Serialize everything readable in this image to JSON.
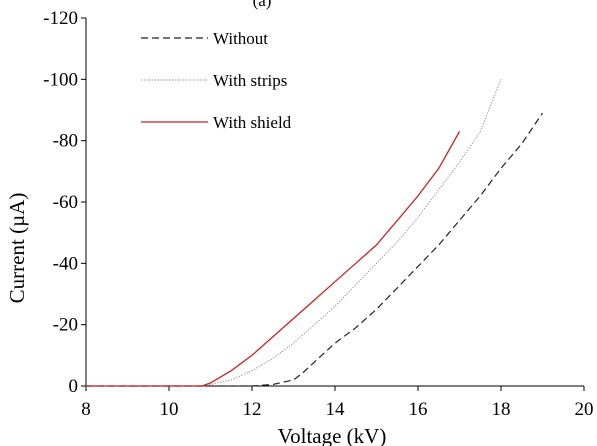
{
  "chart_data": {
    "type": "line",
    "panel_label": "(a)",
    "title": "",
    "xlabel": "Voltage (kV)",
    "ylabel": "Current (µA)",
    "xlim": [
      8,
      20
    ],
    "ylim": [
      0,
      -120
    ],
    "x_ticks": [
      8,
      10,
      12,
      14,
      16,
      18,
      20
    ],
    "x_tick_labels": [
      "8",
      "10",
      "12",
      "14",
      "16",
      "18",
      "20"
    ],
    "y_ticks": [
      0,
      -20,
      -40,
      -60,
      -80,
      -100,
      -120
    ],
    "y_tick_labels": [
      "0",
      "-20",
      "-40",
      "-60",
      "-80",
      "-100",
      "-120"
    ],
    "grid": false,
    "legend": {
      "placement": "top-left"
    },
    "series": [
      {
        "name": "Without",
        "color": "#222222",
        "line_style": "dashed",
        "x": [
          8,
          10,
          11,
          12,
          12.5,
          13,
          13.2,
          13.6,
          14,
          14.5,
          15,
          15.5,
          16,
          16.5,
          17,
          17.5,
          18,
          18.5,
          19
        ],
        "y": [
          0,
          0,
          0,
          0,
          -0.5,
          -2,
          -4,
          -9,
          -14,
          -19,
          -25,
          -32,
          -39,
          -46,
          -54,
          -62,
          -71,
          -79,
          -89
        ]
      },
      {
        "name": "With strips",
        "color": "#9a9a9a",
        "line_style": "dotted",
        "x": [
          8,
          10,
          10.8,
          11,
          11.5,
          12,
          12.5,
          13,
          13.5,
          14,
          14.5,
          15,
          15.5,
          16,
          16.5,
          17,
          17.5,
          18
        ],
        "y": [
          0,
          0,
          0,
          -0.5,
          -2,
          -5,
          -9,
          -14,
          -20,
          -26,
          -33,
          -40,
          -47,
          -55,
          -64,
          -73,
          -83,
          -100
        ]
      },
      {
        "name": "With shield",
        "color": "#cc2222",
        "line_style": "solid",
        "x": [
          8,
          10,
          10.8,
          11,
          11.5,
          12,
          12.5,
          13,
          13.5,
          14,
          14.5,
          15,
          15.5,
          16,
          16.5,
          17
        ],
        "y": [
          0,
          0,
          0,
          -1,
          -5,
          -10,
          -16,
          -22,
          -28,
          -34,
          -40,
          -46,
          -54,
          -62,
          -71,
          -83
        ]
      }
    ]
  }
}
